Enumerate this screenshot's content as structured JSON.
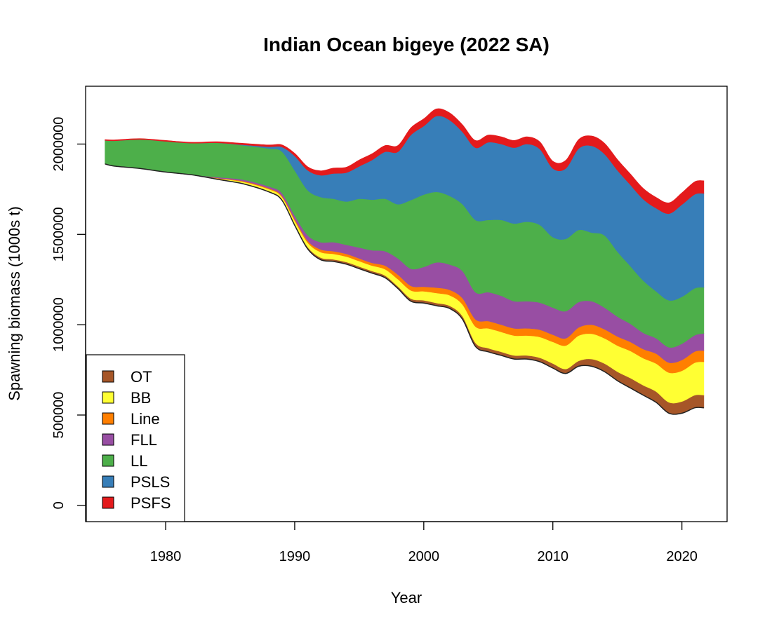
{
  "chart_data": {
    "type": "area",
    "stacked": true,
    "title": "Indian Ocean bigeye (2022 SA)",
    "xlabel": "Year",
    "ylabel": "Spawning biomass (1000s t)",
    "xlim": [
      1973.8,
      2023.5
    ],
    "ylim": [
      -90000,
      2320000
    ],
    "xticks": [
      1980,
      1990,
      2000,
      2010,
      2020
    ],
    "yticks": [
      0,
      500000,
      1000000,
      1500000,
      2000000
    ],
    "ytick_labels": [
      "0",
      "500000",
      "1000000",
      "1500000",
      "2000000"
    ],
    "grid": false,
    "legend_position": "bottom-left",
    "x": [
      1975.3,
      1976,
      1978,
      1980,
      1982,
      1984,
      1986,
      1988,
      1989,
      1990,
      1991,
      1992,
      1993,
      1994,
      1995,
      1996,
      1997,
      1998,
      1999,
      2000,
      2001,
      2002,
      2003,
      2004,
      2005,
      2006,
      2007,
      2008,
      2009,
      2010,
      2011,
      2012,
      2013,
      2014,
      2015,
      2016,
      2017,
      2018,
      2019,
      2020,
      2021,
      2021.7
    ],
    "series": [
      {
        "name": "OT",
        "color": "#A65628",
        "values": [
          0,
          0,
          0,
          0,
          0,
          2000,
          3000,
          5000,
          6000,
          8000,
          10000,
          12000,
          12000,
          12000,
          12000,
          12000,
          12000,
          12000,
          15000,
          15000,
          15000,
          15000,
          17000,
          20000,
          20000,
          20000,
          20000,
          20000,
          22000,
          25000,
          25000,
          30000,
          40000,
          45000,
          50000,
          55000,
          55000,
          60000,
          60000,
          65000,
          70000,
          70000
        ]
      },
      {
        "name": "BB",
        "color": "#FFFF33",
        "values": [
          0,
          0,
          0,
          0,
          0,
          3000,
          8000,
          10000,
          12000,
          18000,
          25000,
          30000,
          30000,
          30000,
          30000,
          30000,
          35000,
          40000,
          45000,
          50000,
          55000,
          58000,
          65000,
          90000,
          110000,
          110000,
          110000,
          110000,
          115000,
          120000,
          130000,
          140000,
          140000,
          140000,
          145000,
          150000,
          150000,
          155000,
          165000,
          170000,
          180000,
          185000
        ]
      },
      {
        "name": "Line",
        "color": "#FF7F00",
        "values": [
          0,
          0,
          0,
          0,
          0,
          2000,
          4000,
          5000,
          6000,
          8000,
          10000,
          15000,
          15000,
          15000,
          15000,
          15000,
          20000,
          25000,
          25000,
          25000,
          30000,
          30000,
          35000,
          40000,
          40000,
          40000,
          40000,
          40000,
          40000,
          40000,
          40000,
          45000,
          50000,
          50000,
          50000,
          50000,
          50000,
          55000,
          55000,
          60000,
          62000,
          62000
        ]
      },
      {
        "name": "FLL",
        "color": "#984EA3",
        "values": [
          0,
          0,
          0,
          0,
          0,
          5000,
          8000,
          10000,
          15000,
          20000,
          30000,
          40000,
          50000,
          50000,
          60000,
          70000,
          80000,
          90000,
          95000,
          110000,
          140000,
          140000,
          150000,
          150000,
          160000,
          160000,
          150000,
          150000,
          150000,
          150000,
          150000,
          140000,
          130000,
          120000,
          110000,
          100000,
          90000,
          85000,
          85000,
          90000,
          90000,
          95000
        ]
      },
      {
        "name": "LL",
        "color": "#4DAF4A",
        "values": [
          130000,
          140000,
          160000,
          170000,
          175000,
          190000,
          190000,
          210000,
          230000,
          250000,
          250000,
          250000,
          240000,
          240000,
          270000,
          280000,
          290000,
          300000,
          380000,
          400000,
          390000,
          380000,
          370000,
          400000,
          400000,
          420000,
          430000,
          440000,
          430000,
          390000,
          400000,
          400000,
          380000,
          400000,
          360000,
          320000,
          290000,
          260000,
          260000,
          260000,
          260000,
          255000
        ]
      },
      {
        "name": "PSLS",
        "color": "#377EB8",
        "values": [
          0,
          0,
          0,
          0,
          0,
          0,
          3000,
          10000,
          25000,
          80000,
          110000,
          120000,
          140000,
          160000,
          180000,
          220000,
          260000,
          290000,
          360000,
          380000,
          420000,
          420000,
          400000,
          400000,
          430000,
          420000,
          420000,
          430000,
          420000,
          380000,
          390000,
          450000,
          480000,
          450000,
          450000,
          450000,
          450000,
          460000,
          480000,
          510000,
          520000,
          520000
        ]
      },
      {
        "name": "PSFS",
        "color": "#E41A1C",
        "values": [
          5000,
          5000,
          5000,
          5000,
          5000,
          6000,
          8000,
          10000,
          12000,
          15000,
          20000,
          25000,
          30000,
          30000,
          35000,
          35000,
          35000,
          35000,
          40000,
          40000,
          40000,
          40000,
          40000,
          40000,
          40000,
          40000,
          40000,
          40000,
          40000,
          40000,
          45000,
          50000,
          55000,
          60000,
          60000,
          60000,
          60000,
          60000,
          60000,
          65000,
          70000,
          70000
        ]
      }
    ],
    "baseline": [
      1890000,
      1878000,
      1865000,
      1845000,
      1830000,
      1805000,
      1780000,
      1735000,
      1690000,
      1550000,
      1420000,
      1360000,
      1350000,
      1335000,
      1310000,
      1285000,
      1260000,
      1200000,
      1130000,
      1120000,
      1105000,
      1090000,
      1030000,
      880000,
      850000,
      830000,
      810000,
      810000,
      795000,
      760000,
      730000,
      770000,
      770000,
      740000,
      690000,
      650000,
      610000,
      570000,
      510000,
      510000,
      540000,
      540000
    ]
  }
}
